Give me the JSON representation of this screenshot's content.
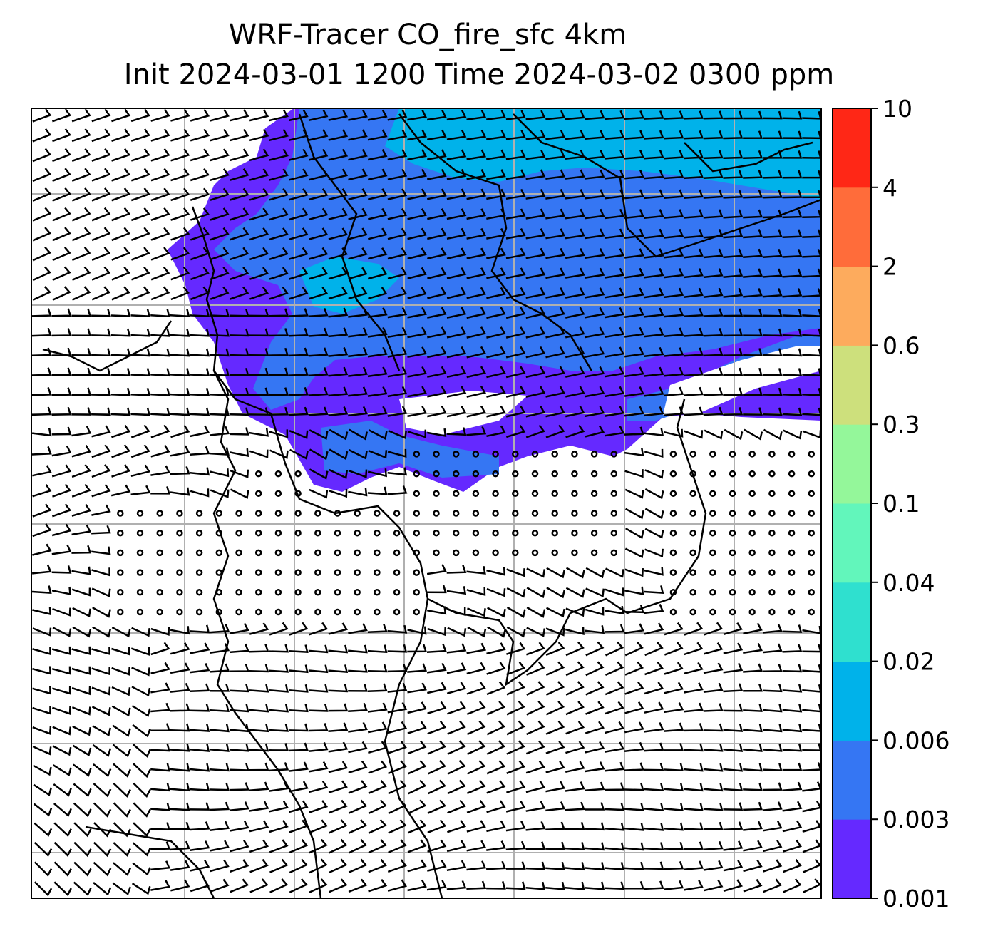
{
  "title": {
    "line1": "WRF-Tracer CO_fire_sfc 4km",
    "line2": "Init 2024-03-01 1200 Time 2024-03-02 0300 ppm"
  },
  "colorbar": {
    "levels": [
      "0.001",
      "0.003",
      "0.006",
      "0.02",
      "0.04",
      "0.1",
      "0.3",
      "0.6",
      "2",
      "4",
      "10"
    ],
    "colors": [
      "#6529ff",
      "#3576f3",
      "#00b2ea",
      "#2fe0cf",
      "#62f6bb",
      "#94f79a",
      "#cde07c",
      "#fdab5d",
      "#ff6c3a",
      "#ff2716"
    ]
  },
  "colors": {
    "grid": "#b0b0b0",
    "coast": "#000000",
    "barb": "#000000"
  }
}
